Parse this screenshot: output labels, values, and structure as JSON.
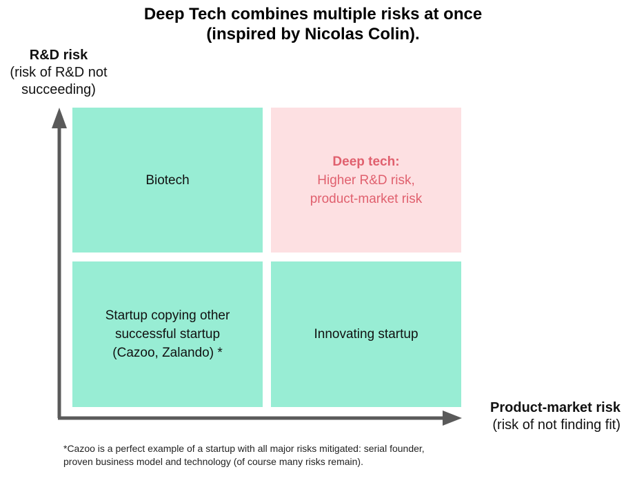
{
  "title": {
    "line1": "Deep Tech combines multiple risks at once",
    "line2": "(inspired by Nicolas Colin)."
  },
  "y_axis": {
    "label": "R&D risk",
    "sublabel_line1": "(risk of R&D not",
    "sublabel_line2": "succeeding)"
  },
  "x_axis": {
    "label": "Product-market risk",
    "sublabel": "(risk of not finding fit)"
  },
  "quadrants": {
    "top_left": {
      "text": "Biotech"
    },
    "top_right": {
      "heading": "Deep tech:",
      "line1": "Higher R&D risk,",
      "line2": "product-market risk"
    },
    "bottom_left": {
      "line1": "Startup copying other",
      "line2": "successful startup",
      "line3": "(Cazoo, Zalando) *"
    },
    "bottom_right": {
      "text": "Innovating startup"
    }
  },
  "footnote": {
    "line1": "*Cazoo is a perfect example of a startup with all major risks mitigated: serial founder,",
    "line2": "proven business model and technology (of course many risks remain)."
  },
  "colors": {
    "green_quadrant": "#98edd4",
    "pink_quadrant": "#fde0e2",
    "deep_tech_text": "#e0606e",
    "axis": "#5a5a5a"
  }
}
